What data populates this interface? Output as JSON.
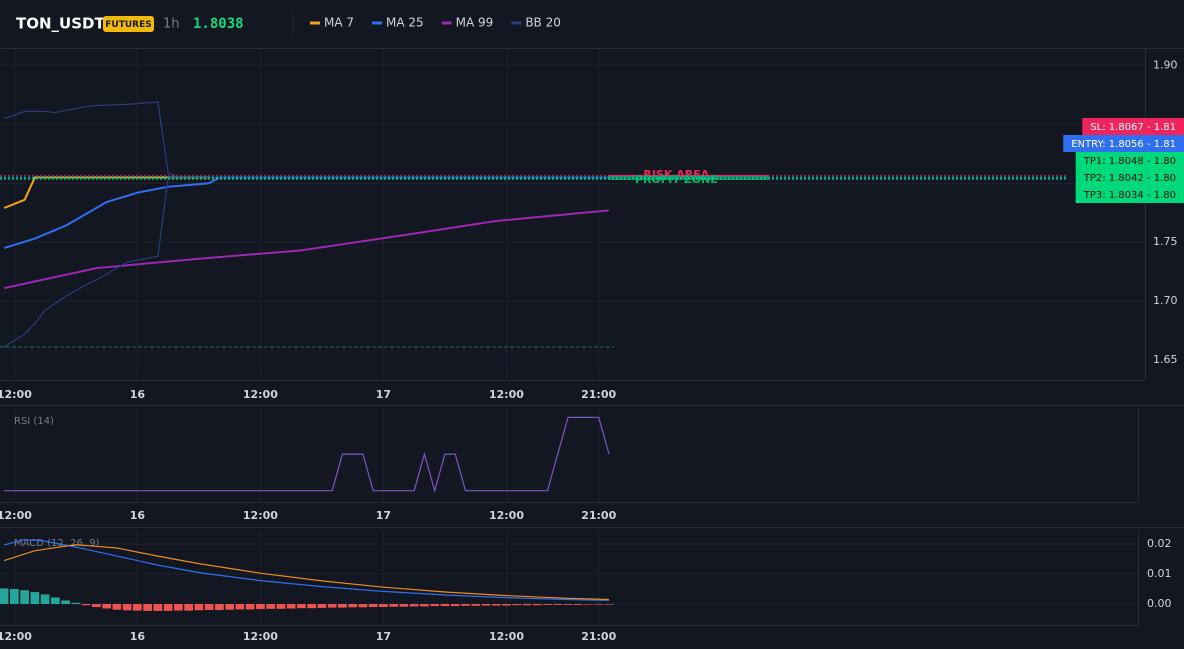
{
  "header": {
    "symbol": "TON_USDT",
    "badge": "FUTURES",
    "interval": "1h",
    "price": "1.8038"
  },
  "chart_data": [
    {
      "type": "line",
      "xlim": [
        10.6,
        122.3
      ],
      "xticks": [
        {
          "value": 12,
          "label": "12:00"
        },
        {
          "value": 24,
          "label": "16"
        },
        {
          "value": 36,
          "label": "12:00"
        },
        {
          "value": 48,
          "label": "17"
        },
        {
          "value": 60,
          "label": "12:00"
        },
        {
          "value": 69,
          "label": "21:00"
        }
      ],
      "ylim": [
        1.633,
        1.914
      ],
      "yticks": [
        1.65,
        {
          "value": 1.7,
          "label": "1.70"
        },
        1.75,
        {
          "value": 1.8,
          "label": "1.80"
        },
        1.85,
        {
          "value": 1.9,
          "label": "1.90"
        }
      ],
      "grid": true,
      "series": [
        {
          "name": "MA 7",
          "color": "#f7a21b",
          "x": [
            11,
            13,
            14,
            31
          ],
          "values": [
            1.779,
            1.786,
            1.805,
            1.805
          ]
        },
        {
          "name": "MA 25",
          "color": "#2f6ff0",
          "x": [
            11,
            14,
            17,
            21,
            24,
            27,
            31,
            32,
            70
          ],
          "values": [
            1.745,
            1.753,
            1.764,
            1.784,
            1.792,
            1.797,
            1.8,
            1.805,
            1.805
          ]
        },
        {
          "name": "MA 99",
          "color": "#9c27b0",
          "x": [
            11,
            20,
            30,
            40,
            50,
            59,
            70
          ],
          "values": [
            1.711,
            1.728,
            1.736,
            1.743,
            1.756,
            1.768,
            1.777
          ]
        },
        {
          "name": "BB 20",
          "color": "#2a3e7e",
          "x": [
            11,
            13,
            14,
            15,
            16,
            17,
            19,
            20,
            23,
            26,
            27,
            28,
            70
          ],
          "values": [
            1.855,
            1.861,
            1.861,
            1.861,
            1.86,
            1.862,
            1.865,
            1.866,
            1.867,
            1.869,
            1.809,
            1.805,
            1.805
          ],
          "lower": [
            1.661,
            1.672,
            1.681,
            1.692,
            1.698,
            1.704,
            1.714,
            1.718,
            1.733,
            1.738,
            1.805,
            1.805,
            1.805
          ]
        }
      ],
      "hlines": [
        {
          "value": 1.661,
          "to": 70.5,
          "color": "#1f6f5a"
        }
      ],
      "levels": [
        {
          "text": "SL: 1.8067 - 1.81",
          "value": 1.8067,
          "color": "#f0245c",
          "text_color": "#ffffff"
        },
        {
          "text": "ENTRY: 1.8056 - 1.81",
          "value": 1.8056,
          "color": "#2f6ff0",
          "text_color": "#ffffff"
        },
        {
          "text": "TP1: 1.8048 - 1.80",
          "value": 1.8048,
          "color": "#00d97a",
          "text_color": "#111111"
        },
        {
          "text": "TP2: 1.8042 - 1.80",
          "value": 1.8042,
          "color": "#00d97a",
          "text_color": "#111111"
        },
        {
          "text": "TP3: 1.8034 - 1.80",
          "value": 1.8034,
          "color": "#00d97a",
          "text_color": "#111111"
        }
      ],
      "annotations": [
        {
          "text": "RISK AREA",
          "x": [
            70,
            85.5
          ],
          "y": [
            1.8056,
            1.8067
          ],
          "color": "#f0245c"
        },
        {
          "text": "PROFIT ZONE",
          "x": [
            70,
            85.5
          ],
          "y": [
            1.8034,
            1.8056
          ],
          "color": "#00b86b"
        }
      ]
    },
    {
      "type": "line",
      "title": "RSI (14)",
      "xlim": [
        10.6,
        121.6
      ],
      "xticks": [
        {
          "value": 12,
          "label": "12:00"
        },
        {
          "value": 24,
          "label": "16"
        },
        {
          "value": 36,
          "label": "12:00"
        },
        {
          "value": 48,
          "label": "17"
        },
        {
          "value": 60,
          "label": "12:00"
        },
        {
          "value": 69,
          "label": "21:00"
        }
      ],
      "ylim": [
        0,
        100
      ],
      "grid": true,
      "series": [
        {
          "color": "#7e57c2",
          "x": [
            11,
            43,
            44,
            46,
            47,
            51,
            52,
            53,
            54,
            55,
            56,
            64,
            66,
            69,
            70
          ],
          "values": [
            12,
            12,
            51,
            51,
            12,
            12,
            51,
            12,
            51,
            51,
            12,
            12,
            90,
            90,
            51
          ]
        }
      ]
    },
    {
      "type": "macd",
      "title": "MACD (12, 26, 9)",
      "xlim": [
        10.6,
        121.6
      ],
      "xticks": [
        {
          "value": 12,
          "label": "12:00"
        },
        {
          "value": 24,
          "label": "16"
        },
        {
          "value": 36,
          "label": "12:00"
        },
        {
          "value": 48,
          "label": "17"
        },
        {
          "value": 60,
          "label": "12:00"
        },
        {
          "value": 69,
          "label": "21:00"
        }
      ],
      "ylim": [
        -0.007,
        0.0247
      ],
      "yticks": [
        {
          "value": 0,
          "label": "0.00"
        },
        0.01,
        0.02
      ],
      "grid": true,
      "histogram": {
        "up_color": "#26a69a",
        "down_color": "#ef5350",
        "x": [
          11,
          12,
          13,
          14,
          15,
          16,
          17,
          18,
          19,
          20,
          21,
          22,
          23,
          24,
          25,
          26,
          27,
          28,
          29,
          30,
          31,
          32,
          33,
          34,
          35,
          36,
          37,
          38,
          39,
          40,
          41,
          42,
          43,
          44,
          45,
          46,
          47,
          48,
          49,
          50,
          51,
          52,
          53,
          54,
          55,
          56,
          57,
          58,
          59,
          60,
          61,
          62,
          63,
          64,
          65,
          66,
          67,
          68,
          69,
          70
        ],
        "values": [
          0.0052,
          0.005,
          0.0046,
          0.004,
          0.0032,
          0.0022,
          0.0012,
          0.0004,
          -0.0004,
          -0.001,
          -0.0015,
          -0.0019,
          -0.0021,
          -0.0022,
          -0.0023,
          -0.0023,
          -0.0023,
          -0.0022,
          -0.0022,
          -0.0021,
          -0.002,
          -0.002,
          -0.0019,
          -0.0018,
          -0.0018,
          -0.0017,
          -0.0016,
          -0.0016,
          -0.0015,
          -0.0014,
          -0.0014,
          -0.0013,
          -0.0012,
          -0.0012,
          -0.0011,
          -0.0011,
          -0.001,
          -0.001,
          -0.0009,
          -0.0009,
          -0.0008,
          -0.0008,
          -0.0007,
          -0.0007,
          -0.0007,
          -0.0006,
          -0.0006,
          -0.0005,
          -0.0005,
          -0.0005,
          -0.0004,
          -0.0004,
          -0.0004,
          -0.0003,
          -0.0003,
          -0.0003,
          -0.0003,
          -0.0002,
          -0.0002,
          -0.0002
        ]
      },
      "series": [
        {
          "color": "#2f6ff0",
          "x": [
            11,
            13,
            15,
            18,
            22,
            26,
            30,
            36,
            42,
            48,
            54,
            60,
            66,
            70
          ],
          "values": [
            0.0197,
            0.0215,
            0.021,
            0.019,
            0.016,
            0.013,
            0.0105,
            0.0078,
            0.0058,
            0.0042,
            0.003,
            0.0021,
            0.0015,
            0.0012
          ]
        },
        {
          "color": "#f08c1b",
          "x": [
            11,
            14,
            18,
            22,
            26,
            30,
            36,
            42,
            48,
            54,
            60,
            66,
            70
          ],
          "values": [
            0.0145,
            0.0178,
            0.0198,
            0.0187,
            0.016,
            0.0135,
            0.0103,
            0.0077,
            0.0056,
            0.004,
            0.0028,
            0.0019,
            0.0015
          ]
        }
      ]
    }
  ]
}
